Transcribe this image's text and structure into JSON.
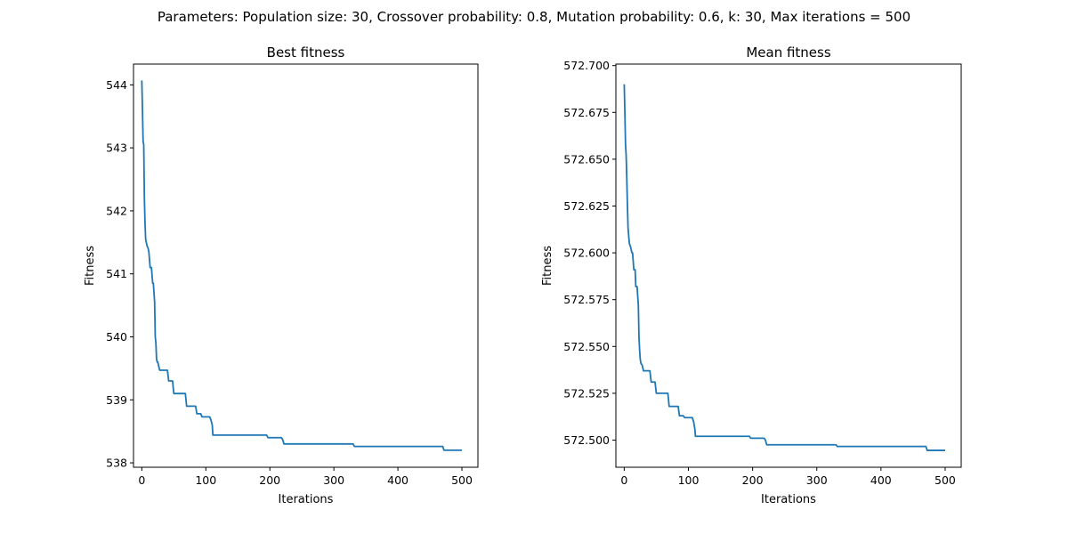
{
  "figure": {
    "suptitle": "Parameters: Population size: 30, Crossover probability: 0.8, Mutation probability: 0.6, k: 30, Max iterations = 500"
  },
  "colors": {
    "line": "#1f77b4",
    "axes": "#000000",
    "background": "#ffffff"
  },
  "chart_data": [
    {
      "type": "line",
      "title": "Best fitness",
      "xlabel": "Iterations",
      "ylabel": "Fitness",
      "xlim": [
        -13,
        525
      ],
      "ylim": [
        537.93,
        544.33
      ],
      "xticks": [
        0,
        100,
        200,
        300,
        400,
        500
      ],
      "xtick_labels": [
        "0",
        "100",
        "200",
        "300",
        "400",
        "500"
      ],
      "yticks": [
        538,
        539,
        540,
        541,
        542,
        543,
        544
      ],
      "ytick_labels": [
        "538",
        "539",
        "540",
        "541",
        "542",
        "543",
        "544"
      ],
      "grid": false,
      "series": [
        {
          "x": [
            0,
            1,
            2,
            3,
            4,
            5,
            6,
            7,
            8,
            10,
            11,
            13,
            15,
            17,
            18,
            19,
            20,
            21,
            22,
            23,
            24,
            25,
            26,
            28,
            30,
            40,
            42,
            48,
            50,
            68,
            70,
            84,
            86,
            92,
            94,
            106,
            108,
            110,
            111,
            113,
            195,
            197,
            218,
            220,
            222,
            224,
            330,
            332,
            470,
            472,
            500
          ],
          "y": [
            544.07,
            543.6,
            543.1,
            543.05,
            542.2,
            541.8,
            541.55,
            541.5,
            541.45,
            541.4,
            541.35,
            541.1,
            541.1,
            540.85,
            540.85,
            540.7,
            540.55,
            540.0,
            539.9,
            539.65,
            539.6,
            539.6,
            539.55,
            539.47,
            539.47,
            539.47,
            539.3,
            539.3,
            539.1,
            539.1,
            538.9,
            538.9,
            538.78,
            538.78,
            538.73,
            538.73,
            538.68,
            538.6,
            538.44,
            538.44,
            538.44,
            538.4,
            538.4,
            538.37,
            538.3,
            538.3,
            538.3,
            538.26,
            538.26,
            538.2,
            538.2
          ]
        }
      ]
    },
    {
      "type": "line",
      "title": "Mean fitness",
      "xlabel": "Iterations",
      "ylabel": "Fitness",
      "xlim": [
        -13,
        525
      ],
      "ylim": [
        572.4855,
        572.7008
      ],
      "xticks": [
        0,
        100,
        200,
        300,
        400,
        500
      ],
      "xtick_labels": [
        "0",
        "100",
        "200",
        "300",
        "400",
        "500"
      ],
      "yticks": [
        572.5,
        572.525,
        572.55,
        572.575,
        572.6,
        572.625,
        572.65,
        572.675,
        572.7
      ],
      "ytick_labels": [
        "572.500",
        "572.525",
        "572.550",
        "572.575",
        "572.600",
        "572.625",
        "572.650",
        "572.675",
        "572.700"
      ],
      "grid": false,
      "series": [
        {
          "x": [
            0,
            1,
            2,
            3,
            4,
            5,
            6,
            8,
            10,
            12,
            13,
            15,
            17,
            18,
            20,
            22,
            23,
            24,
            25,
            26,
            28,
            30,
            32,
            40,
            42,
            48,
            50,
            68,
            70,
            84,
            86,
            92,
            94,
            106,
            108,
            110,
            111,
            113,
            195,
            197,
            218,
            220,
            222,
            224,
            330,
            332,
            470,
            472,
            500
          ],
          "y": [
            572.69,
            572.675,
            572.658,
            572.652,
            572.64,
            572.625,
            572.613,
            572.605,
            572.603,
            572.6,
            572.6,
            572.591,
            572.591,
            572.582,
            572.582,
            572.572,
            572.555,
            572.548,
            572.543,
            572.541,
            572.54,
            572.537,
            572.537,
            572.537,
            572.531,
            572.531,
            572.525,
            572.525,
            572.518,
            572.518,
            572.513,
            572.513,
            572.512,
            572.512,
            572.51,
            572.506,
            572.502,
            572.502,
            572.502,
            572.501,
            572.501,
            572.5,
            572.4975,
            572.4975,
            572.4975,
            572.4966,
            572.4966,
            572.4945,
            572.4945
          ]
        }
      ]
    }
  ]
}
